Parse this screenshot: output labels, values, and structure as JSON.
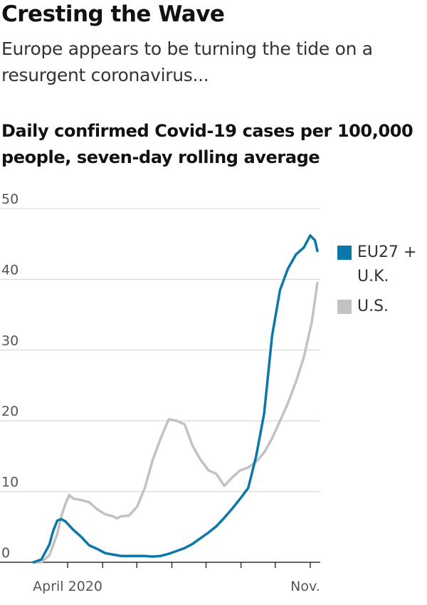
{
  "header": {
    "title": "Cresting the Wave",
    "subtitle": "Europe appears to be turning the tide on a resurgent coronavirus..."
  },
  "chart_data": {
    "type": "line",
    "title": "Daily confirmed Covid-19 cases per 100,000 people, seven-day rolling average",
    "xlabel": "",
    "ylabel": "",
    "ylim": [
      0,
      50
    ],
    "yticks": [
      "0",
      "10",
      "20",
      "30",
      "40",
      "50"
    ],
    "xticks": [
      "April 2020",
      "Nov."
    ],
    "x_unit": "weeks since early March 2020",
    "legend_position": "right",
    "series": [
      {
        "name": "EU27 + U.K.",
        "color": "#0a78a8",
        "x": [
          0,
          1,
          2,
          2.5,
          3,
          3.5,
          4,
          5,
          6,
          7,
          8,
          9,
          10,
          11,
          12,
          13,
          14,
          15,
          16,
          17,
          18,
          19,
          20,
          21,
          22,
          23,
          24,
          25,
          26,
          27,
          28,
          29,
          30,
          31,
          32,
          33,
          34,
          34.8,
          35.4,
          35.7
        ],
        "values": [
          0,
          0.4,
          2.5,
          4.5,
          5.9,
          6.1,
          5.8,
          4.6,
          3.6,
          2.4,
          1.9,
          1.3,
          1.1,
          0.9,
          0.9,
          0.9,
          0.9,
          0.8,
          0.9,
          1.2,
          1.6,
          2.0,
          2.6,
          3.4,
          4.2,
          5.1,
          6.3,
          7.6,
          9.0,
          10.5,
          15.0,
          21.0,
          32.0,
          38.5,
          41.5,
          43.5,
          44.5,
          46.2,
          45.5,
          44.0
        ]
      },
      {
        "name": "U.S.",
        "color": "#c2c2c2",
        "x": [
          0,
          1,
          2,
          3,
          3.5,
          4,
          4.5,
          5,
          6,
          7,
          8,
          9,
          10,
          10.5,
          11,
          12,
          13,
          14,
          15,
          16,
          17,
          18,
          19,
          20,
          21,
          22,
          23,
          24,
          25,
          26,
          27,
          28,
          29,
          30,
          31,
          32,
          33,
          34,
          35,
          35.7
        ],
        "values": [
          0,
          0,
          1.0,
          4.0,
          6.5,
          8.2,
          9.5,
          9.0,
          8.8,
          8.5,
          7.5,
          6.8,
          6.5,
          6.2,
          6.5,
          6.6,
          7.8,
          10.5,
          14.5,
          17.5,
          20.2,
          20.0,
          19.5,
          16.5,
          14.5,
          13.0,
          12.5,
          10.8,
          12.0,
          13.0,
          13.4,
          14.2,
          15.5,
          17.5,
          20.0,
          22.5,
          25.5,
          29.0,
          34.0,
          39.5
        ]
      }
    ]
  }
}
